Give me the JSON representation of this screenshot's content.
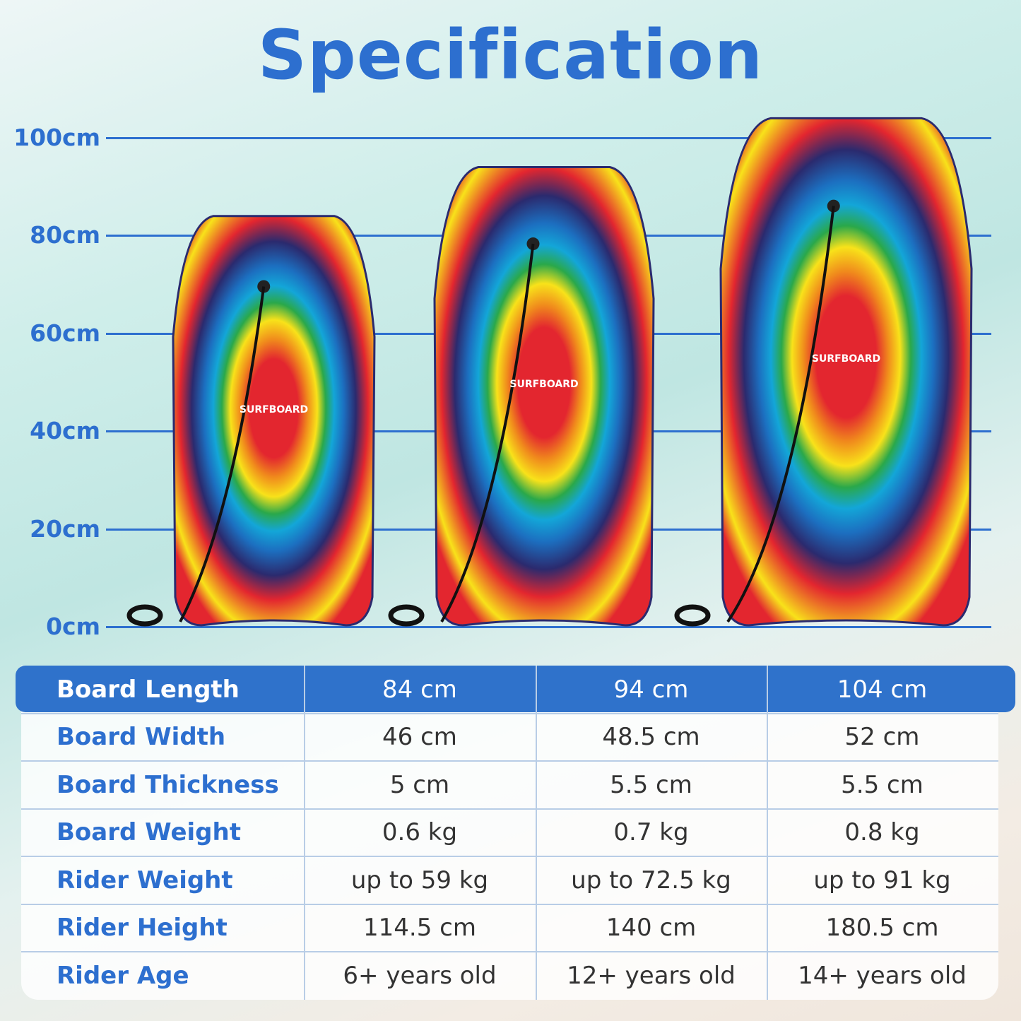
{
  "title": "Specification",
  "scale": {
    "ticks": [
      "100cm",
      "80cm",
      "60cm",
      "40cm",
      "20cm",
      "0cm"
    ]
  },
  "boards": [
    {
      "label": "SURFBOARD",
      "length_cm": 84
    },
    {
      "label": "SURFBOARD",
      "length_cm": 94
    },
    {
      "label": "SURFBOARD",
      "length_cm": 104
    }
  ],
  "colors": {
    "accent": "#2d6fcf",
    "header_bg": "#2f72cb"
  },
  "table": {
    "rows": [
      {
        "label": "Board Length",
        "values": [
          "84 cm",
          "94 cm",
          "104 cm"
        ]
      },
      {
        "label": "Board Width",
        "values": [
          "46 cm",
          "48.5 cm",
          "52 cm"
        ]
      },
      {
        "label": "Board Thickness",
        "values": [
          "5 cm",
          "5.5 cm",
          "5.5 cm"
        ]
      },
      {
        "label": "Board Weight",
        "values": [
          "0.6 kg",
          "0.7 kg",
          "0.8 kg"
        ]
      },
      {
        "label": "Rider Weight",
        "values": [
          "up to 59 kg",
          "up to 72.5 kg",
          "up to 91 kg"
        ]
      },
      {
        "label": "Rider Height",
        "values": [
          "114.5 cm",
          "140 cm",
          "180.5 cm"
        ]
      },
      {
        "label": "Rider Age",
        "values": [
          "6+ years old",
          "12+ years old",
          "14+ years old"
        ]
      }
    ]
  }
}
